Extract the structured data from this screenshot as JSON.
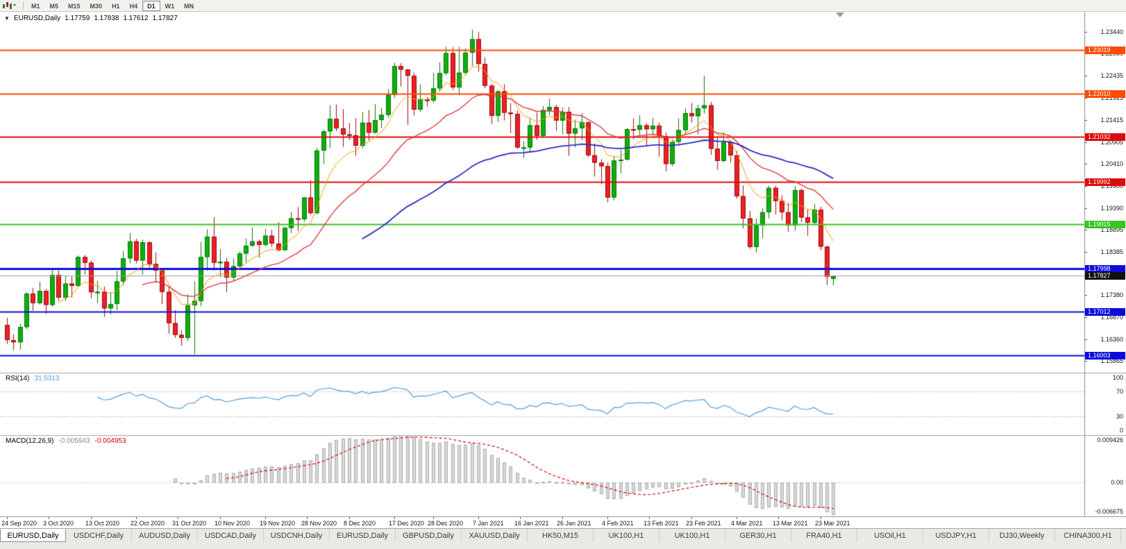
{
  "toolbar": {
    "timeframes": [
      "M1",
      "M5",
      "M15",
      "M30",
      "H1",
      "H4",
      "D1",
      "W1",
      "MN"
    ],
    "active": "D1"
  },
  "chart": {
    "symbol": "EURUSD,Daily",
    "open": "1.17759",
    "high": "1.17838",
    "low": "1.17612",
    "close": "1.17827"
  },
  "colors": {
    "bull_fill": "#0fae0f",
    "bull_stroke": "#077807",
    "bear_fill": "#ed2024",
    "bear_stroke": "#9c0b0b",
    "axis_text": "#141414",
    "separator": "#a2a2a2",
    "bid_line": "#9b9b9b",
    "bid_tag_bg": "#111111",
    "macd_hist_fill": "#d9d9d9",
    "macd_hist_stroke": "#ababab",
    "macd_signal": "#e00000",
    "rsi_line": "#4f9ed9",
    "grid_dotted": "#b5b5b5"
  },
  "chart_data": {
    "type": "candlestick",
    "title": "EURUSD,Daily",
    "price_min": 1.156,
    "price_max": 1.239,
    "y_ticks": [
      "1.23440",
      "1.22950",
      "1.22435",
      "1.21925",
      "1.21415",
      "1.20905",
      "1.20410",
      "1.19900",
      "1.19390",
      "1.18895",
      "1.18385",
      "1.17380",
      "1.16870",
      "1.16360",
      "1.15865"
    ],
    "x_ticks": [
      {
        "label": "24 Sep 2020",
        "i": 0
      },
      {
        "label": "3 Oct 2020",
        "i": 6.5
      },
      {
        "label": "13 Oct 2020",
        "i": 13
      },
      {
        "label": "22 Oct 2020",
        "i": 20
      },
      {
        "label": "31 Oct 2020",
        "i": 26.5
      },
      {
        "label": "10 Nov 2020",
        "i": 33
      },
      {
        "label": "19 Nov 2020",
        "i": 40
      },
      {
        "label": "28 Nov 2020",
        "i": 46.5
      },
      {
        "label": "8 Dec 2020",
        "i": 53
      },
      {
        "label": "17 Dec 2020",
        "i": 60
      },
      {
        "label": "28 Dec 2020",
        "i": 66
      },
      {
        "label": "7 Jan 2021",
        "i": 73
      },
      {
        "label": "16 Jan 2021",
        "i": 79.5
      },
      {
        "label": "26 Jan 2021",
        "i": 86
      },
      {
        "label": "4 Feb 2021",
        "i": 93
      },
      {
        "label": "13 Feb 2021",
        "i": 99.5
      },
      {
        "label": "23 Feb 2021",
        "i": 106
      },
      {
        "label": "4 Mar 2021",
        "i": 113
      },
      {
        "label": "13 Mar 2021",
        "i": 119.5
      },
      {
        "label": "23 Mar 2021",
        "i": 126
      }
    ],
    "candles": [
      [
        1.167,
        1.1686,
        1.1626,
        1.1635
      ],
      [
        1.1635,
        1.1648,
        1.1612,
        1.163
      ],
      [
        1.163,
        1.1672,
        1.1613,
        1.1665
      ],
      [
        1.1665,
        1.1745,
        1.166,
        1.1742
      ],
      [
        1.1742,
        1.1755,
        1.1703,
        1.172
      ],
      [
        1.172,
        1.1769,
        1.1717,
        1.1748
      ],
      [
        1.1748,
        1.1752,
        1.1695,
        1.1716
      ],
      [
        1.1716,
        1.1798,
        1.1712,
        1.1785
      ],
      [
        1.1785,
        1.1795,
        1.1725,
        1.1733
      ],
      [
        1.1733,
        1.1782,
        1.1725,
        1.1765
      ],
      [
        1.1765,
        1.1781,
        1.1733,
        1.176
      ],
      [
        1.176,
        1.183,
        1.1758,
        1.1826
      ],
      [
        1.1826,
        1.1831,
        1.1786,
        1.1813
      ],
      [
        1.1813,
        1.1818,
        1.1731,
        1.1745
      ],
      [
        1.1745,
        1.1771,
        1.172,
        1.1746
      ],
      [
        1.1746,
        1.1758,
        1.1688,
        1.1708
      ],
      [
        1.1708,
        1.1746,
        1.1694,
        1.1718
      ],
      [
        1.1718,
        1.1794,
        1.1704,
        1.177
      ],
      [
        1.177,
        1.184,
        1.1762,
        1.1823
      ],
      [
        1.1823,
        1.1881,
        1.1812,
        1.1862
      ],
      [
        1.1862,
        1.1868,
        1.1811,
        1.1818
      ],
      [
        1.1818,
        1.1866,
        1.1786,
        1.186
      ],
      [
        1.186,
        1.1862,
        1.1802,
        1.181
      ],
      [
        1.181,
        1.1837,
        1.1769,
        1.1795
      ],
      [
        1.1795,
        1.18,
        1.1718,
        1.1746
      ],
      [
        1.1746,
        1.1759,
        1.165,
        1.1674
      ],
      [
        1.1674,
        1.1704,
        1.164,
        1.1647
      ],
      [
        1.1647,
        1.1658,
        1.1622,
        1.164
      ],
      [
        1.164,
        1.174,
        1.1633,
        1.1715
      ],
      [
        1.1715,
        1.177,
        1.1603,
        1.1725
      ],
      [
        1.1725,
        1.1861,
        1.1713,
        1.1826
      ],
      [
        1.1826,
        1.189,
        1.1795,
        1.1873
      ],
      [
        1.1873,
        1.1918,
        1.1795,
        1.1813
      ],
      [
        1.1813,
        1.1844,
        1.178,
        1.1815
      ],
      [
        1.1815,
        1.1824,
        1.1745,
        1.1779
      ],
      [
        1.1779,
        1.1823,
        1.1772,
        1.1805
      ],
      [
        1.1805,
        1.1839,
        1.1799,
        1.1834
      ],
      [
        1.1834,
        1.1869,
        1.1814,
        1.1852
      ],
      [
        1.1852,
        1.1894,
        1.185,
        1.1862
      ],
      [
        1.1862,
        1.1866,
        1.1825,
        1.1854
      ],
      [
        1.1854,
        1.1891,
        1.1851,
        1.1875
      ],
      [
        1.1875,
        1.1889,
        1.1849,
        1.1857
      ],
      [
        1.1857,
        1.1906,
        1.1839,
        1.1842
      ],
      [
        1.1842,
        1.1895,
        1.184,
        1.1893
      ],
      [
        1.1893,
        1.193,
        1.1881,
        1.1915
      ],
      [
        1.1915,
        1.1941,
        1.1886,
        1.1913
      ],
      [
        1.1913,
        1.1964,
        1.1907,
        1.1963
      ],
      [
        1.1963,
        1.2003,
        1.1923,
        1.1927
      ],
      [
        1.1927,
        1.2077,
        1.1924,
        1.2071
      ],
      [
        1.2071,
        1.2119,
        1.204,
        1.2115
      ],
      [
        1.2115,
        1.2175,
        1.2077,
        1.2144
      ],
      [
        1.2144,
        1.2177,
        1.2115,
        1.2122
      ],
      [
        1.2122,
        1.2166,
        1.2079,
        1.2108
      ],
      [
        1.2108,
        1.2134,
        1.2095,
        1.2106
      ],
      [
        1.2106,
        1.2146,
        1.2059,
        1.2082
      ],
      [
        1.2082,
        1.2159,
        1.2076,
        1.2135
      ],
      [
        1.2135,
        1.2164,
        1.2094,
        1.2112
      ],
      [
        1.2112,
        1.2178,
        1.211,
        1.2141
      ],
      [
        1.2141,
        1.2169,
        1.2123,
        1.2153
      ],
      [
        1.2153,
        1.2212,
        1.2146,
        1.2199
      ],
      [
        1.2199,
        1.2273,
        1.2192,
        1.2265
      ],
      [
        1.2265,
        1.2272,
        1.2218,
        1.2257
      ],
      [
        1.2257,
        1.2259,
        1.213,
        1.2243
      ],
      [
        1.2243,
        1.225,
        1.2151,
        1.2165
      ],
      [
        1.2165,
        1.2223,
        1.216,
        1.2188
      ],
      [
        1.2188,
        1.2194,
        1.2172,
        1.2186
      ],
      [
        1.2186,
        1.225,
        1.218,
        1.2214
      ],
      [
        1.2214,
        1.2274,
        1.2207,
        1.2249
      ],
      [
        1.2249,
        1.231,
        1.2244,
        1.2295
      ],
      [
        1.2295,
        1.2309,
        1.221,
        1.2216
      ],
      [
        1.2216,
        1.2309,
        1.2198,
        1.225
      ],
      [
        1.225,
        1.2306,
        1.2245,
        1.2296
      ],
      [
        1.2296,
        1.2349,
        1.2265,
        1.2327
      ],
      [
        1.2327,
        1.2344,
        1.2252,
        1.227
      ],
      [
        1.227,
        1.2285,
        1.2214,
        1.222
      ],
      [
        1.222,
        1.2225,
        1.2132,
        1.2151
      ],
      [
        1.2151,
        1.221,
        1.2137,
        1.2207
      ],
      [
        1.2207,
        1.2223,
        1.214,
        1.2158
      ],
      [
        1.2158,
        1.218,
        1.2111,
        1.2155
      ],
      [
        1.2155,
        1.2163,
        1.2075,
        1.2078
      ],
      [
        1.2078,
        1.2092,
        1.2054,
        1.2078
      ],
      [
        1.2078,
        1.2145,
        1.2066,
        1.2129
      ],
      [
        1.2129,
        1.2158,
        1.2095,
        1.2105
      ],
      [
        1.2105,
        1.2173,
        1.2103,
        1.2164
      ],
      [
        1.2164,
        1.219,
        1.2152,
        1.2171
      ],
      [
        1.2171,
        1.2176,
        1.2116,
        1.214
      ],
      [
        1.214,
        1.217,
        1.2108,
        1.216
      ],
      [
        1.216,
        1.2171,
        1.2059,
        1.211
      ],
      [
        1.211,
        1.2142,
        1.2078,
        1.2122
      ],
      [
        1.2122,
        1.2157,
        1.2095,
        1.2136
      ],
      [
        1.2136,
        1.2138,
        1.2056,
        1.206
      ],
      [
        1.206,
        1.2087,
        1.2011,
        1.2043
      ],
      [
        1.2043,
        1.2051,
        1.1993,
        1.2035
      ],
      [
        1.2035,
        1.2043,
        1.1952,
        1.1963
      ],
      [
        1.1963,
        1.2058,
        1.1956,
        1.2048
      ],
      [
        1.2048,
        1.2072,
        1.2018,
        1.205
      ],
      [
        1.205,
        1.2123,
        1.2048,
        1.212
      ],
      [
        1.212,
        1.2145,
        1.2097,
        1.2119
      ],
      [
        1.2119,
        1.2152,
        1.2107,
        1.2129
      ],
      [
        1.2129,
        1.2134,
        1.208,
        1.212
      ],
      [
        1.212,
        1.2146,
        1.2109,
        1.2128
      ],
      [
        1.2128,
        1.2135,
        1.2057,
        1.2104
      ],
      [
        1.2104,
        1.2113,
        1.2023,
        1.204
      ],
      [
        1.204,
        1.2097,
        1.2035,
        1.2091
      ],
      [
        1.2091,
        1.2145,
        1.2082,
        1.2118
      ],
      [
        1.2118,
        1.2168,
        1.211,
        1.2157
      ],
      [
        1.2157,
        1.218,
        1.2135,
        1.215
      ],
      [
        1.215,
        1.2176,
        1.2109,
        1.2168
      ],
      [
        1.2168,
        1.2243,
        1.2156,
        1.2175
      ],
      [
        1.2175,
        1.2183,
        1.2061,
        1.2075
      ],
      [
        1.2075,
        1.2101,
        1.2027,
        1.2047
      ],
      [
        1.2047,
        1.2113,
        1.2044,
        1.209
      ],
      [
        1.209,
        1.2094,
        1.2043,
        1.206
      ],
      [
        1.206,
        1.207,
        1.196,
        1.1966
      ],
      [
        1.1966,
        1.1991,
        1.1892,
        1.1915
      ],
      [
        1.1915,
        1.1932,
        1.1845,
        1.1849
      ],
      [
        1.1849,
        1.1915,
        1.1836,
        1.1899
      ],
      [
        1.1899,
        1.1938,
        1.1869,
        1.1929
      ],
      [
        1.1929,
        1.199,
        1.1915,
        1.1985
      ],
      [
        1.1985,
        1.199,
        1.1924,
        1.1955
      ],
      [
        1.1955,
        1.1968,
        1.1911,
        1.1929
      ],
      [
        1.1929,
        1.1951,
        1.1884,
        1.1899
      ],
      [
        1.1899,
        1.1989,
        1.1886,
        1.198
      ],
      [
        1.198,
        1.1983,
        1.1906,
        1.1917
      ],
      [
        1.1917,
        1.1936,
        1.1875,
        1.1905
      ],
      [
        1.1905,
        1.1948,
        1.1901,
        1.1935
      ],
      [
        1.1935,
        1.1942,
        1.1842,
        1.185
      ],
      [
        1.185,
        1.1852,
        1.1762,
        1.1781
      ],
      [
        1.17759,
        1.17838,
        1.17612,
        1.17827
      ]
    ],
    "moving_averages": [
      {
        "type": "ema",
        "period": 8,
        "color": "#ff9800",
        "width": 1
      },
      {
        "type": "ema",
        "period": 21,
        "color": "#e0393e",
        "width": 1.4
      },
      {
        "type": "ema",
        "period": 55,
        "color": "#2b2bc8",
        "width": 1.8
      }
    ],
    "levels": [
      {
        "label": "1.23019",
        "value": 1.23019,
        "color": "#ff4a00",
        "width": 2
      },
      {
        "label": "1.22010",
        "value": 1.2201,
        "color": "#ff4a00",
        "width": 2
      },
      {
        "label": "1.21032",
        "value": 1.21032,
        "color": "#dd0c0c",
        "width": 2
      },
      {
        "label": "1.19992",
        "value": 1.19992,
        "color": "#dd0c0c",
        "width": 2
      },
      {
        "label": "1.19015",
        "value": 1.19015,
        "color": "#38c423",
        "width": 2
      },
      {
        "label": "1.17998",
        "value": 1.17998,
        "color": "#0b0bdc",
        "width": 3
      },
      {
        "label": "1.17012",
        "value": 1.17012,
        "color": "#0b0bdc",
        "width": 2
      },
      {
        "label": "1.16003",
        "value": 1.16003,
        "color": "#0b0bdc",
        "width": 2
      }
    ],
    "current_price": {
      "label": "1.17827",
      "value": 1.17827
    },
    "rsi": {
      "name": "RSI(14)",
      "value_text": "31.5313",
      "period": 14,
      "color": "#4f9ed9",
      "guides": [
        70,
        30
      ],
      "axis_labels": [
        {
          "text": "100",
          "v": 100
        },
        {
          "text": "70",
          "v": 70
        },
        {
          "text": "30",
          "v": 30
        },
        {
          "text": "0",
          "v": 0
        }
      ]
    },
    "macd": {
      "name": "MACD(12,26,9)",
      "main_text": "-0.005943",
      "signal_text": "-0.004953",
      "fast": 12,
      "slow": 26,
      "signal_period": 9,
      "range_min": -0.006675,
      "range_max": 0.009426,
      "axis_top": "0.009426",
      "axis_zero": "0.00",
      "axis_bottom": "-0.006675"
    }
  },
  "tabs": {
    "active_index": 0,
    "items": [
      "EURUSD,Daily",
      "USDCHF,Daily",
      "AUDUSD,Daily",
      "USDCAD,Daily",
      "USDCNH,Daily",
      "EURUSD,Daily",
      "GBPUSD,Daily",
      "XAUUSD,Daily",
      "HK50,M15",
      "UK100,H1",
      "UK100,H1",
      "GER30,H1",
      "FRA40,H1",
      "USOil,H1",
      "USDJPY,H1",
      "DJ30,Weekly",
      "CHINA300,H1"
    ]
  }
}
